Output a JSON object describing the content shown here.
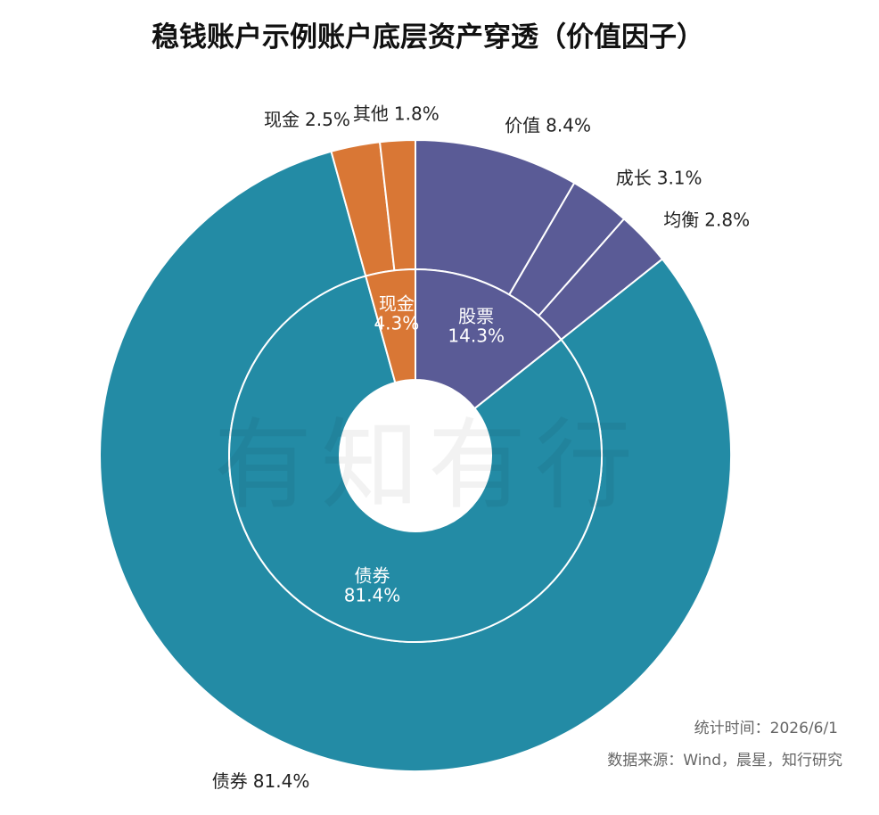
{
  "chart_data": {
    "type": "sunburst",
    "title": "稳钱账户示例账户底层资产穿透（价值因子）",
    "watermark": "有知有行",
    "inner": {
      "categories": [
        "股票",
        "债券",
        "现金"
      ],
      "values": [
        14.3,
        81.4,
        4.3
      ],
      "value_labels": [
        "14.3%",
        "81.4%",
        "4.3%"
      ],
      "colors": [
        "#5a5b96",
        "#238ba5",
        "#d97735"
      ]
    },
    "outer": {
      "categories": [
        "价值",
        "成长",
        "均衡",
        "债券",
        "现金",
        "其他"
      ],
      "values": [
        8.4,
        3.1,
        2.8,
        81.4,
        2.5,
        1.8
      ],
      "value_labels": [
        "8.4%",
        "3.1%",
        "2.8%",
        "81.4%",
        "2.5%",
        "1.8%"
      ],
      "colors": [
        "#5a5b96",
        "#5a5b96",
        "#5a5b96",
        "#238ba5",
        "#d97735",
        "#d97735"
      ]
    },
    "notes": [
      "统计时间：2026/6/1",
      "数据来源：Wind，晨星，知行研究"
    ]
  }
}
